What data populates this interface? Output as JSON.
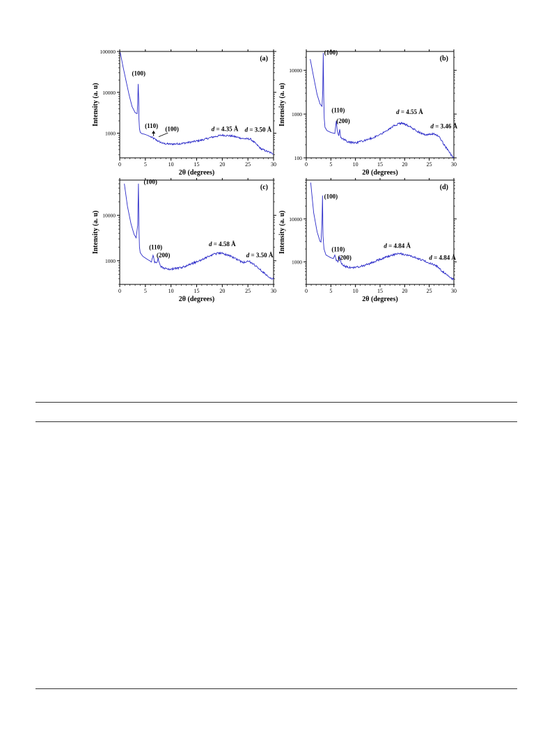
{
  "colors": {
    "line": "#2a2ac8",
    "axis": "#000000"
  },
  "chart_data": [
    {
      "type": "line",
      "panel_label": "(a)",
      "xlabel": "2θ (degrees)",
      "ylabel": "Intensity (a. u)",
      "xlim": [
        0,
        30
      ],
      "ylim": [
        250,
        100000
      ],
      "yscale": "log",
      "xticks": [
        0,
        5,
        10,
        15,
        20,
        25,
        30
      ],
      "yticks": [
        1000,
        10000,
        100000
      ],
      "ytick_labels": [
        "1000",
        "10000",
        "100000"
      ],
      "series": [
        {
          "x": [
            0.1,
            0.6,
            1.2,
            1.8,
            2.4,
            3.0,
            3.4,
            3.5,
            3.6,
            3.7,
            3.75,
            3.85,
            4.0,
            4.3,
            4.8,
            5.5,
            6.5,
            7.5,
            8.5,
            10,
            12,
            14,
            16,
            18,
            20,
            22,
            24,
            25.5,
            26.5,
            27.5,
            28.5,
            29.5,
            30
          ],
          "y": [
            95000,
            45000,
            20000,
            9000,
            4500,
            3200,
            3000,
            5000,
            16000,
            7000,
            2200,
            1300,
            1050,
            980,
            950,
            880,
            760,
            640,
            560,
            540,
            560,
            610,
            680,
            800,
            900,
            850,
            740,
            720,
            560,
            420,
            370,
            330,
            320
          ]
        }
      ],
      "annotations": [
        {
          "text": "(100)",
          "x": 3.7,
          "y": 26000
        },
        {
          "text": "(110)",
          "x": 6.2,
          "y": 1350
        },
        {
          "text": "(100)",
          "x": 10.2,
          "y": 1130
        },
        {
          "text": "d = 4.35 Å",
          "x": 20.5,
          "y": 1130
        },
        {
          "text": "d = 3.50 Å",
          "x": 27.0,
          "y": 1080
        }
      ]
    },
    {
      "type": "line",
      "panel_label": "(b)",
      "xlabel": "2θ (degrees)",
      "ylabel": "Intensity (a. u)",
      "xlim": [
        0,
        30
      ],
      "ylim": [
        100,
        27000
      ],
      "yscale": "log",
      "xticks": [
        0,
        5,
        10,
        15,
        20,
        25,
        30
      ],
      "yticks": [
        100,
        1000,
        10000
      ],
      "ytick_labels": [
        "100",
        "1000",
        "10000"
      ],
      "series": [
        {
          "x": [
            0.8,
            1.5,
            2.2,
            2.8,
            3.2,
            3.35,
            3.45,
            3.55,
            3.65,
            3.8,
            4.2,
            5.0,
            5.8,
            6.1,
            6.3,
            6.6,
            6.8,
            7.0,
            7.5,
            8.5,
            10,
            12,
            14,
            16,
            18,
            19.5,
            21,
            23,
            24.5,
            26,
            27,
            28,
            29,
            29.5,
            30
          ],
          "y": [
            18000,
            7000,
            2800,
            1700,
            1500,
            3500,
            25000,
            2500,
            800,
            500,
            420,
            380,
            360,
            700,
            400,
            320,
            440,
            300,
            270,
            230,
            220,
            250,
            300,
            400,
            560,
            630,
            520,
            380,
            330,
            360,
            300,
            200,
            140,
            115,
            100
          ]
        }
      ],
      "annotations": [
        {
          "text": "(100)",
          "x": 5.0,
          "y": 23000
        },
        {
          "text": "(110)",
          "x": 6.5,
          "y": 1100
        },
        {
          "text": "(200)",
          "x": 7.5,
          "y": 620
        },
        {
          "text": "d = 4.55 Å",
          "x": 21.0,
          "y": 1000
        },
        {
          "text": "d = 3.46 Å",
          "x": 28.0,
          "y": 470
        }
      ]
    },
    {
      "type": "line",
      "panel_label": "(c)",
      "xlabel": "2θ (degrees)",
      "ylabel": "Intensity (a. u)",
      "xlim": [
        0,
        30
      ],
      "ylim": [
        300,
        60000
      ],
      "yscale": "log",
      "xticks": [
        0,
        5,
        10,
        15,
        20,
        25,
        30
      ],
      "yticks": [
        1000,
        10000
      ],
      "ytick_labels": [
        "1000",
        "10000"
      ],
      "series": [
        {
          "x": [
            0.9,
            1.5,
            2.2,
            2.8,
            3.2,
            3.5,
            3.65,
            3.75,
            3.85,
            4.0,
            4.5,
            5.5,
            6.2,
            6.5,
            6.8,
            7.2,
            7.5,
            7.9,
            8.5,
            10,
            12,
            14,
            16,
            18,
            19.5,
            21,
            23,
            24,
            25,
            26,
            27,
            28,
            29,
            30
          ],
          "y": [
            50000,
            16000,
            6500,
            3800,
            3200,
            6000,
            50000,
            5000,
            2000,
            1500,
            1250,
            1050,
            950,
            1350,
            950,
            880,
            1150,
            750,
            680,
            650,
            700,
            850,
            1050,
            1350,
            1500,
            1350,
            1050,
            900,
            1000,
            850,
            680,
            560,
            450,
            390
          ]
        }
      ],
      "annotations": [
        {
          "text": "(100)",
          "x": 6.0,
          "y": 49000
        },
        {
          "text": "(110)",
          "x": 7.0,
          "y": 1800
        },
        {
          "text": "(200)",
          "x": 8.5,
          "y": 1180
        },
        {
          "text": "d = 4.58 Å",
          "x": 20.0,
          "y": 2100
        },
        {
          "text": "d = 3.50 Å",
          "x": 27.3,
          "y": 1200
        }
      ]
    },
    {
      "type": "line",
      "panel_label": "(d)",
      "xlabel": "2θ (degrees)",
      "ylabel": "Intensity (a. u)",
      "xlim": [
        0,
        30
      ],
      "ylim": [
        300,
        80000
      ],
      "yscale": "log",
      "xticks": [
        0,
        5,
        10,
        15,
        20,
        25,
        30
      ],
      "yticks": [
        1000,
        10000
      ],
      "ytick_labels": [
        "1000",
        "10000"
      ],
      "series": [
        {
          "x": [
            0.9,
            1.5,
            2.2,
            2.8,
            3.0,
            3.2,
            3.3,
            3.4,
            3.6,
            4.0,
            5.0,
            5.5,
            5.8,
            6.1,
            6.5,
            6.8,
            7.2,
            8.0,
            9.5,
            11,
            13,
            15,
            17,
            18.5,
            20,
            22,
            24,
            25.5,
            26.5,
            28,
            29,
            30
          ],
          "y": [
            70000,
            14000,
            5000,
            3000,
            2900,
            9000,
            35000,
            4000,
            2000,
            1450,
            1250,
            1200,
            1450,
            1100,
            1000,
            1280,
            900,
            780,
            730,
            780,
            920,
            1150,
            1400,
            1550,
            1500,
            1300,
            1050,
            900,
            800,
            560,
            450,
            390
          ]
        }
      ],
      "annotations": [
        {
          "text": "(100)",
          "x": 5.0,
          "y": 30000
        },
        {
          "text": "(110)",
          "x": 6.5,
          "y": 1750
        },
        {
          "text": "(200)",
          "x": 7.8,
          "y": 1120
        },
        {
          "text": "d = 4.84 Å",
          "x": 18.5,
          "y": 2100
        },
        {
          "text": "d = 4.84 Å",
          "x": 27.7,
          "y": 1120
        }
      ]
    }
  ]
}
